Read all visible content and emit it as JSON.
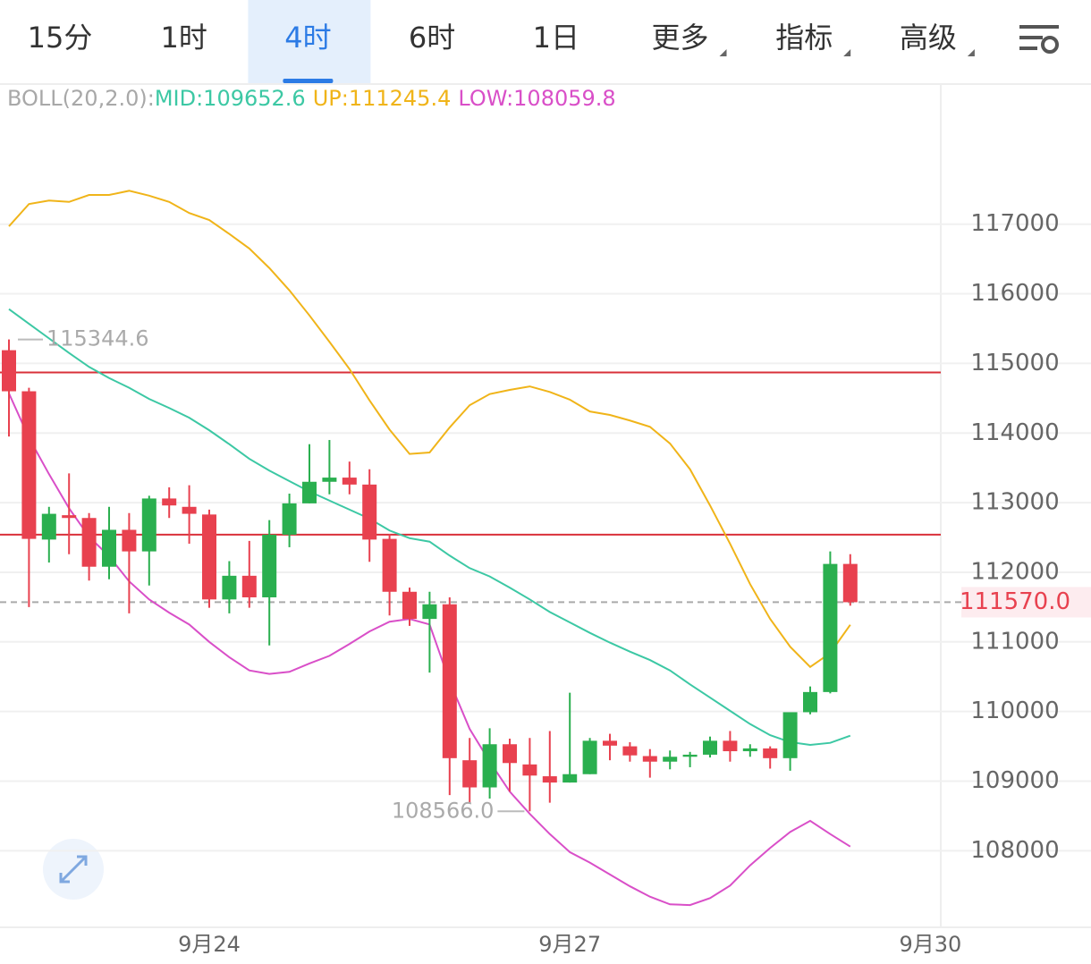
{
  "tabs": [
    {
      "label": "15分"
    },
    {
      "label": "1时"
    },
    {
      "label": "4时",
      "selected": true
    },
    {
      "label": "6时"
    },
    {
      "label": "1日"
    },
    {
      "label": "更多",
      "dropdown": true
    },
    {
      "label": "指标",
      "dropdown": true
    },
    {
      "label": "高级",
      "dropdown": true
    }
  ],
  "chart_data": {
    "type": "candlestick",
    "indicator": "BOLL(20,2.0):",
    "categories": [
      null,
      null,
      null,
      null,
      null,
      null,
      null,
      null,
      null,
      null,
      "9月24",
      null,
      null,
      null,
      null,
      null,
      null,
      null,
      null,
      null,
      null,
      null,
      null,
      null,
      null,
      null,
      null,
      null,
      "9月27",
      null,
      null,
      null,
      null,
      null,
      null,
      null,
      null,
      null,
      null,
      null,
      null,
      null,
      null,
      null,
      null,
      null,
      "9月30"
    ],
    "open": [
      115190,
      114600,
      112470,
      112820,
      112780,
      112080,
      112610,
      112300,
      113060,
      112940,
      112830,
      111610,
      111950,
      111640,
      112540,
      112990,
      113300,
      113360,
      113260,
      112480,
      111720,
      111330,
      111540,
      109300,
      108910,
      109530,
      109240,
      109070,
      108980,
      109100,
      109580,
      109500,
      109360,
      109280,
      109350,
      109380,
      109580,
      109430,
      109470,
      109330,
      109990,
      110280,
      112120,
      null,
      null,
      null,
      null
    ],
    "high": [
      115344.6,
      114650,
      112940,
      113420,
      112850,
      112940,
      112850,
      113100,
      113220,
      113250,
      112900,
      112160,
      112450,
      112750,
      113130,
      113840,
      113900,
      113590,
      113480,
      112550,
      111780,
      111720,
      111640,
      109620,
      109760,
      109610,
      109620,
      109720,
      110270,
      109620,
      109680,
      109560,
      109460,
      109440,
      109420,
      109640,
      109720,
      109530,
      109500,
      109990,
      110360,
      112300,
      112260,
      null,
      null,
      null,
      null
    ],
    "low": [
      113950,
      111500,
      112140,
      112260,
      111880,
      111900,
      111410,
      111810,
      112780,
      112410,
      111490,
      111410,
      111490,
      110950,
      112360,
      112990,
      113120,
      113120,
      112150,
      111380,
      111230,
      110560,
      108800,
      108690,
      108750,
      108850,
      108566,
      108690,
      108980,
      109100,
      109300,
      109280,
      109050,
      109170,
      109200,
      109340,
      109280,
      109350,
      109180,
      109150,
      109960,
      110260,
      111520,
      null,
      null,
      null,
      null
    ],
    "close": [
      114600,
      112480,
      112840,
      112780,
      112080,
      112610,
      112300,
      113060,
      112960,
      112840,
      111610,
      111950,
      111640,
      112540,
      112990,
      113300,
      113360,
      113260,
      112470,
      111720,
      111330,
      111540,
      109330,
      108910,
      109530,
      109260,
      109080,
      108980,
      109100,
      109580,
      109510,
      109370,
      109280,
      109350,
      109380,
      109580,
      109430,
      109470,
      109330,
      109990,
      110280,
      112120,
      111570,
      null,
      null,
      null,
      null
    ],
    "up_color": "#2aaf4f",
    "down_color": "#e8414f",
    "series": [
      {
        "label": "MID:109652.6",
        "color": "#3cc8a4",
        "values": [
          115780,
          115570,
          115360,
          115150,
          114950,
          114790,
          114650,
          114490,
          114360,
          114220,
          114040,
          113840,
          113630,
          113460,
          113310,
          113160,
          113030,
          112900,
          112770,
          112600,
          112490,
          112440,
          112240,
          112060,
          111940,
          111780,
          111610,
          111430,
          111280,
          111130,
          110990,
          110860,
          110740,
          110590,
          110390,
          110200,
          110010,
          109820,
          109660,
          109560,
          109520,
          109550,
          109652.6,
          null,
          null,
          null,
          null
        ]
      },
      {
        "label": "UP:111245.4",
        "color": "#f0b419",
        "values": [
          116970,
          117290,
          117340,
          117320,
          117420,
          117420,
          117480,
          117410,
          117320,
          117160,
          117060,
          116860,
          116650,
          116370,
          116050,
          115690,
          115310,
          114920,
          114470,
          114050,
          113700,
          113720,
          114080,
          114400,
          114560,
          114620,
          114670,
          114590,
          114480,
          114310,
          114260,
          114180,
          114090,
          113850,
          113480,
          112960,
          112410,
          111830,
          111330,
          110930,
          110640,
          110840,
          111245.4,
          null,
          null,
          null,
          null
        ]
      },
      {
        "label": "LOW:108059.8",
        "color": "#d94fc8",
        "values": [
          114570,
          113930,
          113410,
          112920,
          112510,
          112230,
          111870,
          111610,
          111420,
          111250,
          111000,
          110780,
          110590,
          110540,
          110570,
          110690,
          110800,
          110970,
          111150,
          111290,
          111330,
          111250,
          110430,
          109750,
          109280,
          108850,
          108530,
          108240,
          107980,
          107830,
          107660,
          107490,
          107340,
          107230,
          107220,
          107320,
          107500,
          107790,
          108040,
          108270,
          108430,
          108240,
          108059.8,
          null,
          null,
          null,
          null
        ]
      }
    ],
    "ylim": [
      106900,
      119000
    ],
    "yticks": [
      108000,
      109000,
      110000,
      111000,
      112000,
      113000,
      114000,
      115000,
      116000,
      117000
    ],
    "grid": true,
    "hlines": [
      {
        "value": 114870,
        "color": "#d9303a"
      },
      {
        "value": 112540,
        "color": "#d9303a"
      }
    ],
    "last_price": {
      "value": 111570,
      "label": "111570.0"
    },
    "annotations": [
      {
        "value": 115344.6,
        "label": "115344.6"
      },
      {
        "value": 108566,
        "label": "108566.0"
      }
    ]
  }
}
